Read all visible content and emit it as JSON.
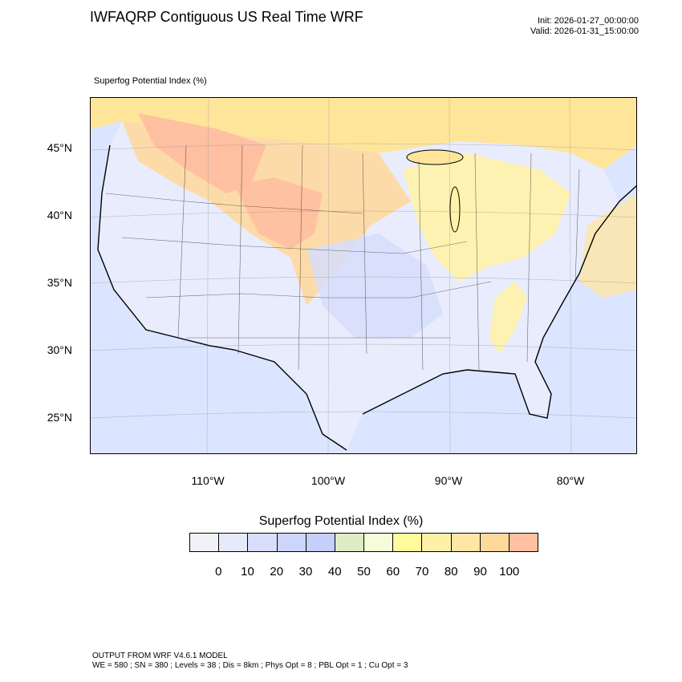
{
  "header": {
    "title": "IWFAQRP Contiguous US Real Time WRF",
    "init": "Init: 2026-01-27_00:00:00",
    "valid": "Valid: 2026-01-31_15:00:00"
  },
  "map": {
    "field_label": "Superfog Potential Index   (%)",
    "lat_labels": [
      "45°N",
      "40°N",
      "35°N",
      "30°N",
      "25°N"
    ],
    "lon_labels": [
      "110°W",
      "100°W",
      "90°W",
      "80°W"
    ],
    "colors": {
      "ocean_low": "#dbe5ff",
      "land_low": "#e8ecfd",
      "mid_blue": "#cfd9fb",
      "yellow": "#fff3a8",
      "light_orange": "#ffd9a0",
      "salmon": "#ffbda0",
      "border": "#000000"
    }
  },
  "colorbar": {
    "title": "Superfog Potential Index  (%)",
    "colors": [
      "#f0f2f8",
      "#e6eafd",
      "#d8defc",
      "#cdd5fb",
      "#c6cffa",
      "#dfebc5",
      "#f5fcd9",
      "#fffb9d",
      "#fff0a8",
      "#ffe6a4",
      "#ffd99a",
      "#ffbfa0"
    ],
    "ticks": [
      "0",
      "10",
      "20",
      "30",
      "40",
      "50",
      "60",
      "70",
      "80",
      "90",
      "100"
    ]
  },
  "footer": {
    "line1": "OUTPUT FROM WRF V4.6.1 MODEL",
    "line2": "WE = 580 ; SN = 380 ; Levels = 38 ; Dis = 8km ; Phys Opt = 8 ; PBL Opt = 1 ; Cu Opt = 3"
  }
}
